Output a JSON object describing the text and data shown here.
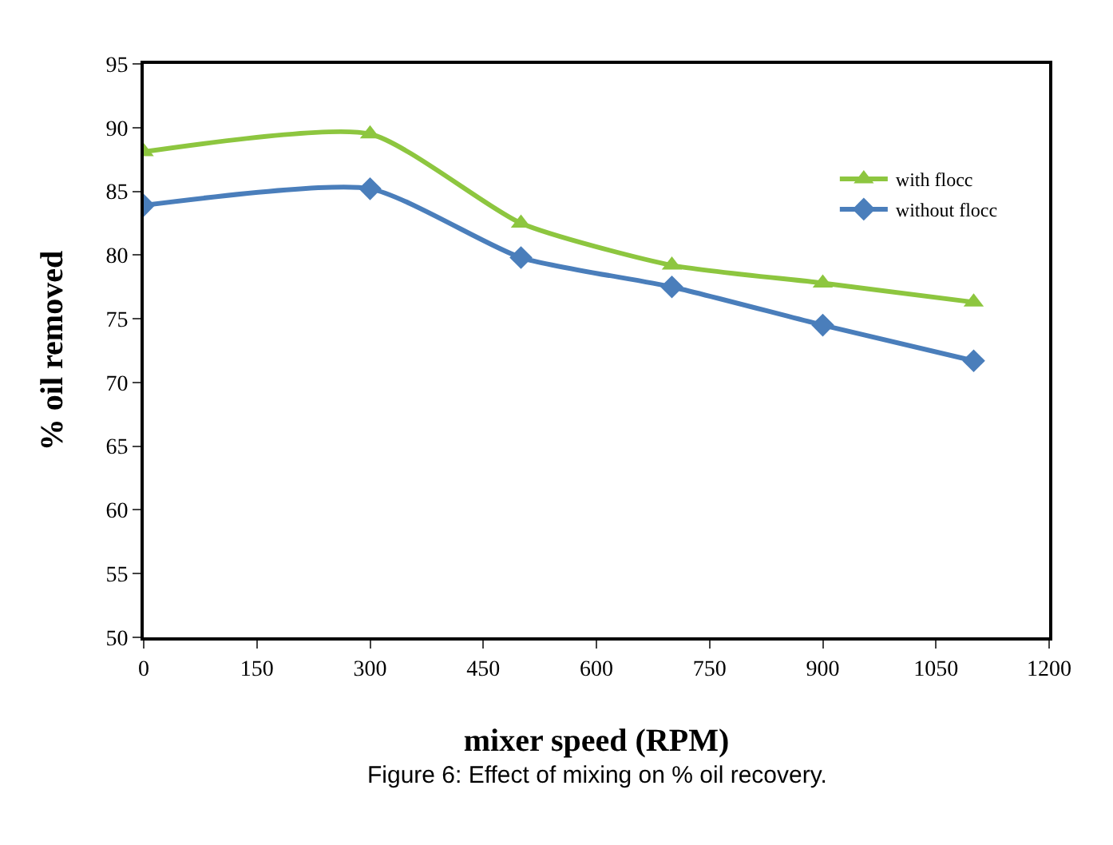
{
  "chart_data": {
    "type": "line",
    "xlabel": "mixer speed (RPM)",
    "ylabel": "% oil removed",
    "x": [
      0,
      300,
      500,
      700,
      900,
      1100
    ],
    "series": [
      {
        "name": "with flocc",
        "color": "#8dc63f",
        "marker": "triangle",
        "values": [
          88.1,
          89.5,
          82.5,
          79.2,
          77.8,
          76.3
        ]
      },
      {
        "name": "without flocc",
        "color": "#4a7ebb",
        "marker": "diamond",
        "values": [
          83.9,
          85.2,
          79.8,
          77.5,
          74.5,
          71.7
        ]
      }
    ],
    "xlim": [
      0,
      1200
    ],
    "xticks": [
      0,
      150,
      300,
      450,
      600,
      750,
      900,
      1050,
      1200
    ],
    "ylim": [
      50,
      95
    ],
    "yticks": [
      50,
      55,
      60,
      65,
      70,
      75,
      80,
      85,
      90,
      95
    ],
    "grid": false,
    "legend": "top right",
    "line_style": "solid",
    "annotations": [
      "Figure 6: Effect of mixing on % oil recovery."
    ]
  }
}
